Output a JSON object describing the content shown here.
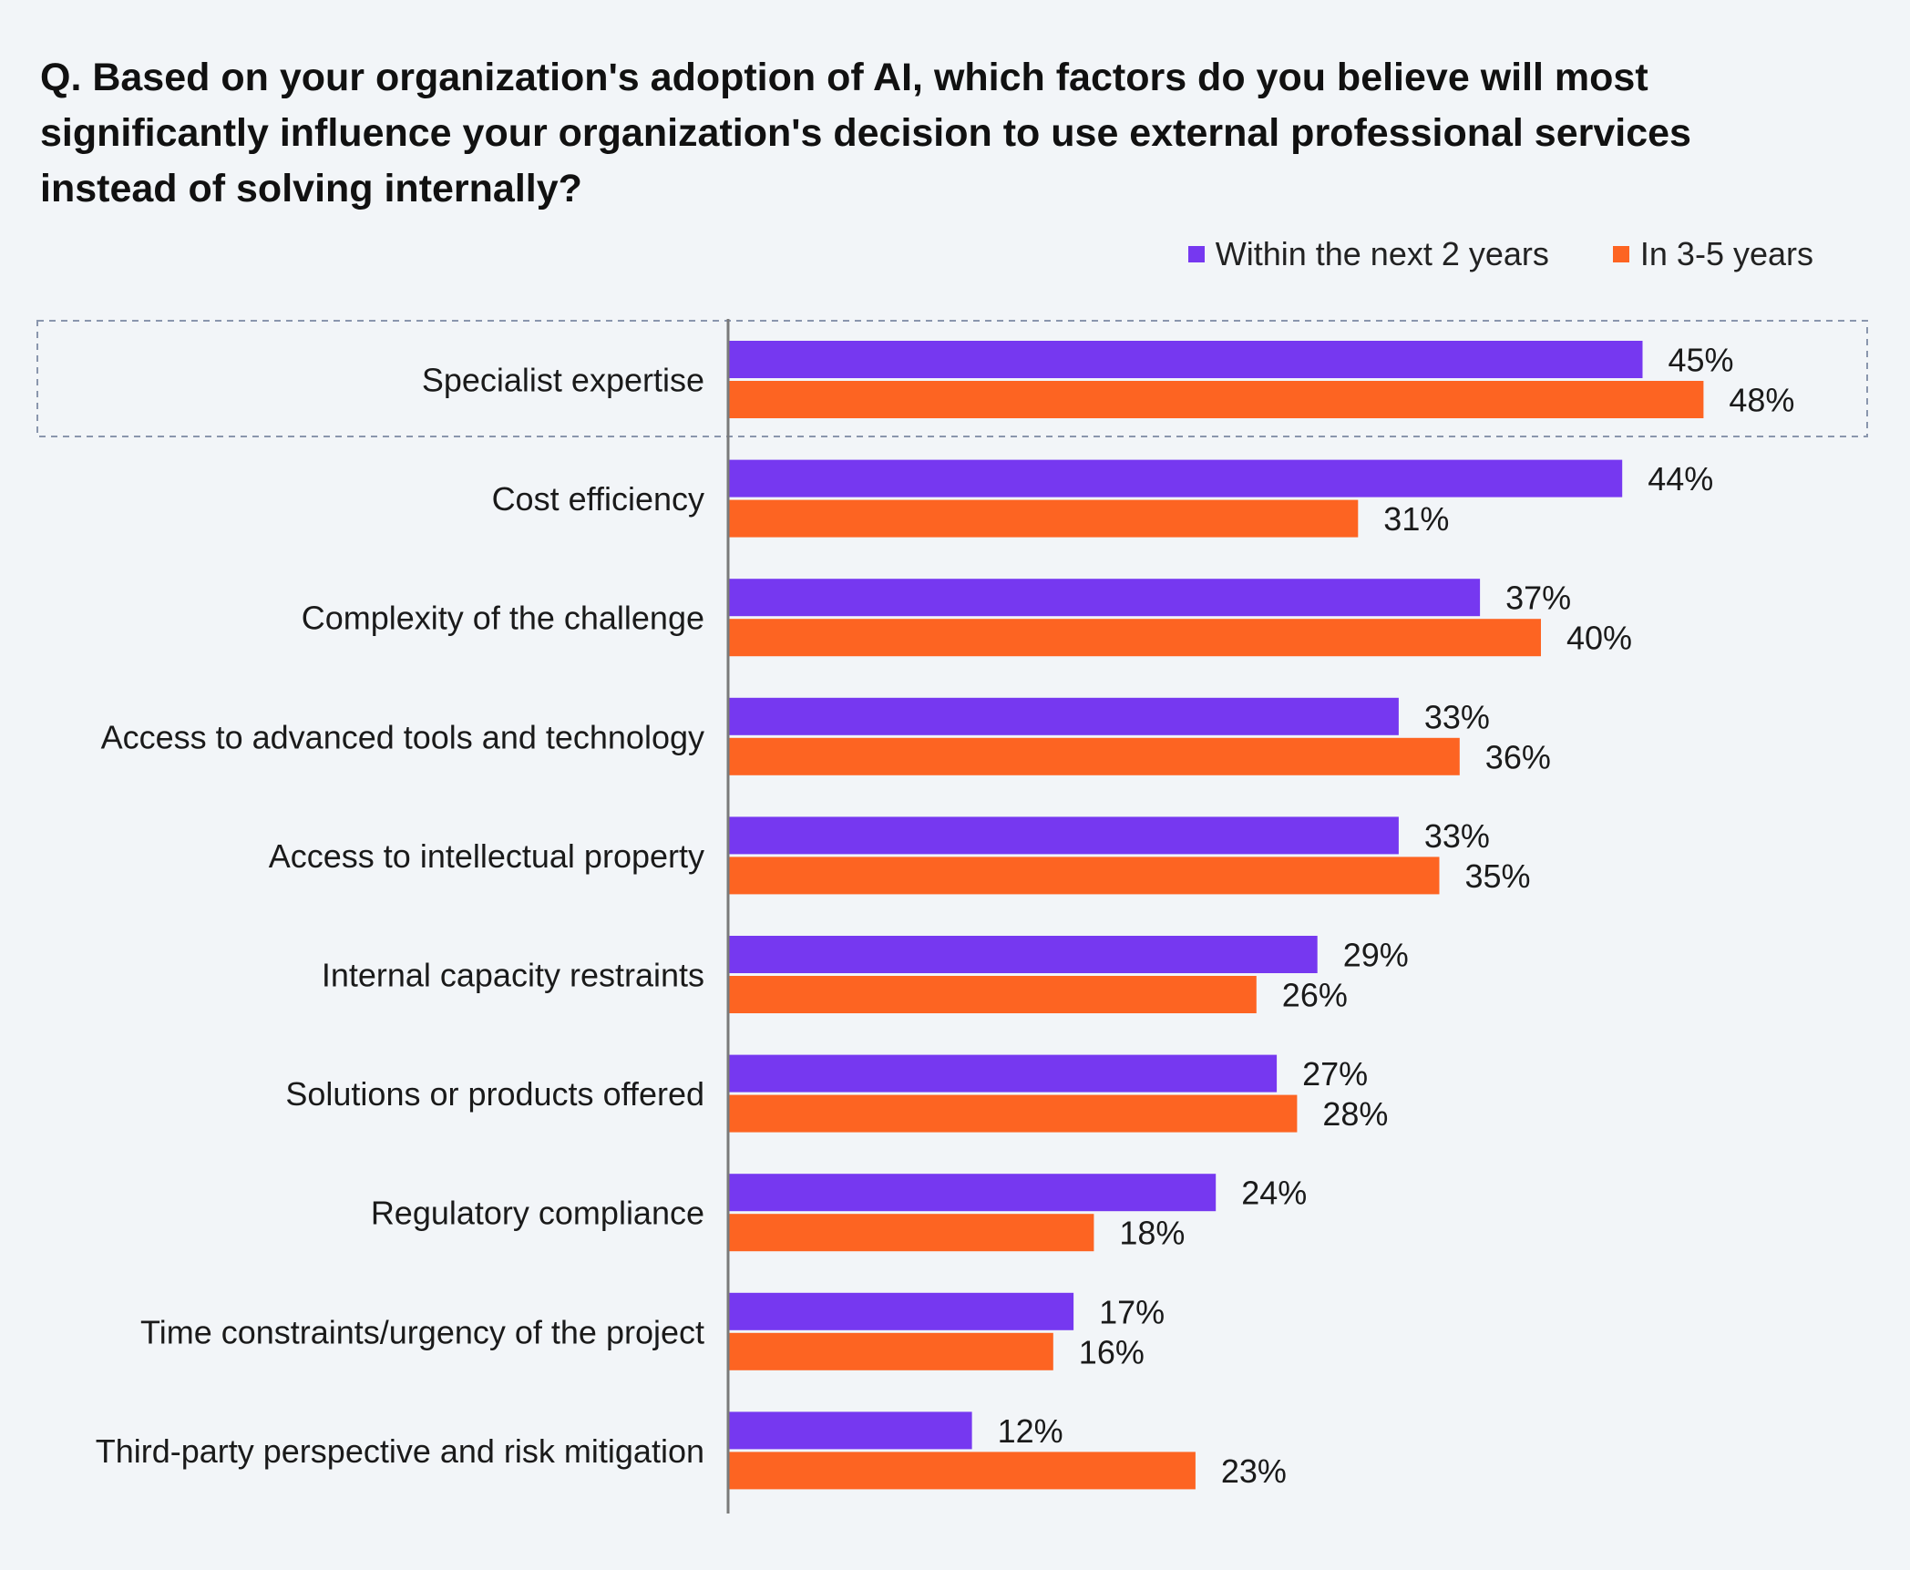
{
  "question": "Q. Based on your organization's adoption of AI, which factors do you believe will most significantly influence your organization's decision to use external professional services instead of solving internally?",
  "legend": [
    {
      "label": "Within the next 2 years",
      "color": "#7638f0"
    },
    {
      "label": "In 3-5 years",
      "color": "#fd6422"
    }
  ],
  "colors": {
    "background": "#f2f5f8",
    "series_a": "#7638f0",
    "series_b": "#fd6422",
    "axis": "#7a7a7a",
    "highlight_border": "#8a96ad"
  },
  "chart_data": {
    "type": "bar",
    "orientation": "horizontal",
    "categories": [
      "Specialist expertise",
      "Cost efficiency",
      "Complexity of the challenge",
      "Access to advanced tools and technology",
      "Access to intellectual property",
      "Internal capacity restraints",
      "Solutions or products offered",
      "Regulatory compliance",
      "Time constraints/urgency of the project",
      "Third-party perspective and risk mitigation"
    ],
    "series": [
      {
        "name": "Within the next 2 years",
        "values": [
          45,
          44,
          37,
          33,
          33,
          29,
          27,
          24,
          17,
          12
        ]
      },
      {
        "name": "In 3-5 years",
        "values": [
          48,
          31,
          40,
          36,
          35,
          26,
          28,
          18,
          16,
          23
        ]
      }
    ],
    "value_labels": [
      [
        "45%",
        "48%"
      ],
      [
        "44%",
        "31%"
      ],
      [
        "37%",
        "40%"
      ],
      [
        "33%",
        "36%"
      ],
      [
        "33%",
        "35%"
      ],
      [
        "29%",
        "26%"
      ],
      [
        "27%",
        "28%"
      ],
      [
        "24%",
        "18%"
      ],
      [
        "17%",
        "16%"
      ],
      [
        "12%",
        "23%"
      ]
    ],
    "highlighted_category": "Specialist expertise",
    "unit": "%",
    "grid": false,
    "legend_position": "top-right"
  }
}
